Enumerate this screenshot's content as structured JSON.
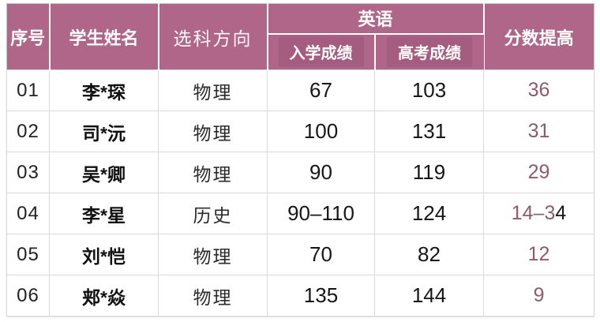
{
  "colors": {
    "header_bg": "#af6689",
    "subheader_chip_bg": "#a55d7f",
    "improve_text": "#8d5b6d",
    "grid_line": "#d9d9d9",
    "outer_border": "#c6c6c6"
  },
  "chart_data": {
    "type": "table",
    "title": "",
    "header": {
      "no": "序号",
      "name": "学生姓名",
      "track": "选科方向",
      "group_english": "英语",
      "entry": "入学成绩",
      "gaokao": "高考成绩",
      "improve": "分数提高"
    },
    "rows": [
      {
        "no": "01",
        "name": "李*琛",
        "track": "物理",
        "entry": "67",
        "gaokao": "103",
        "improve": "36"
      },
      {
        "no": "02",
        "name": "司*沅",
        "track": "物理",
        "entry": "100",
        "gaokao": "131",
        "improve": "31"
      },
      {
        "no": "03",
        "name": "吴*卿",
        "track": "物理",
        "entry": "90",
        "gaokao": "119",
        "improve": "29"
      },
      {
        "no": "04",
        "name": "李*星",
        "track": "历史",
        "entry": "90–110",
        "gaokao": "124",
        "improve": "14–34",
        "improve_black_tail": "4"
      },
      {
        "no": "05",
        "name": "刘*恺",
        "track": "物理",
        "entry": "70",
        "gaokao": "82",
        "improve": "12"
      },
      {
        "no": "06",
        "name": "郏*焱",
        "track": "物理",
        "entry": "135",
        "gaokao": "144",
        "improve": "9"
      }
    ]
  }
}
